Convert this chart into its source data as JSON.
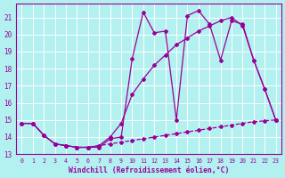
{
  "xlabel": "Windchill (Refroidissement éolien,°C)",
  "bg_color": "#b3f0f0",
  "line_color": "#990099",
  "grid_color": "#ffffff",
  "xlim": [
    -0.5,
    23.5
  ],
  "ylim": [
    13.0,
    21.8
  ],
  "yticks": [
    13,
    14,
    15,
    16,
    17,
    18,
    19,
    20,
    21
  ],
  "xticks": [
    0,
    1,
    2,
    3,
    4,
    5,
    6,
    7,
    8,
    9,
    10,
    11,
    12,
    13,
    14,
    15,
    16,
    17,
    18,
    19,
    20,
    21,
    22,
    23
  ],
  "line1_x": [
    0,
    1,
    2,
    3,
    4,
    5,
    6,
    7,
    8,
    9,
    10,
    11,
    12,
    13,
    14,
    15,
    16,
    17,
    18,
    19,
    20,
    21,
    22,
    23
  ],
  "line1_y": [
    14.8,
    14.8,
    14.1,
    13.6,
    13.5,
    13.4,
    13.4,
    13.4,
    13.9,
    14.0,
    18.6,
    21.3,
    20.1,
    20.2,
    15.0,
    21.1,
    21.4,
    20.6,
    18.5,
    20.8,
    20.6,
    18.5,
    16.8,
    15.0
  ],
  "line2_x": [
    0,
    1,
    2,
    3,
    4,
    5,
    6,
    7,
    8,
    9,
    10,
    11,
    12,
    13,
    14,
    15,
    16,
    17,
    18,
    19,
    20,
    21,
    22,
    23
  ],
  "line2_y": [
    14.8,
    14.8,
    14.1,
    13.6,
    13.5,
    13.4,
    13.4,
    13.5,
    14.0,
    14.8,
    16.5,
    17.4,
    18.2,
    18.8,
    19.4,
    19.8,
    20.2,
    20.5,
    20.8,
    21.0,
    20.5,
    18.5,
    16.8,
    15.0
  ],
  "line3_x": [
    0,
    1,
    2,
    3,
    4,
    5,
    6,
    7,
    8,
    9,
    10,
    11,
    12,
    13,
    14,
    15,
    16,
    17,
    18,
    19,
    20,
    21,
    22,
    23
  ],
  "line3_y": [
    14.8,
    14.8,
    14.1,
    13.6,
    13.5,
    13.4,
    13.4,
    13.5,
    13.6,
    13.7,
    13.8,
    13.9,
    14.0,
    14.1,
    14.2,
    14.3,
    14.4,
    14.5,
    14.6,
    14.7,
    14.8,
    14.9,
    14.95,
    15.0
  ]
}
